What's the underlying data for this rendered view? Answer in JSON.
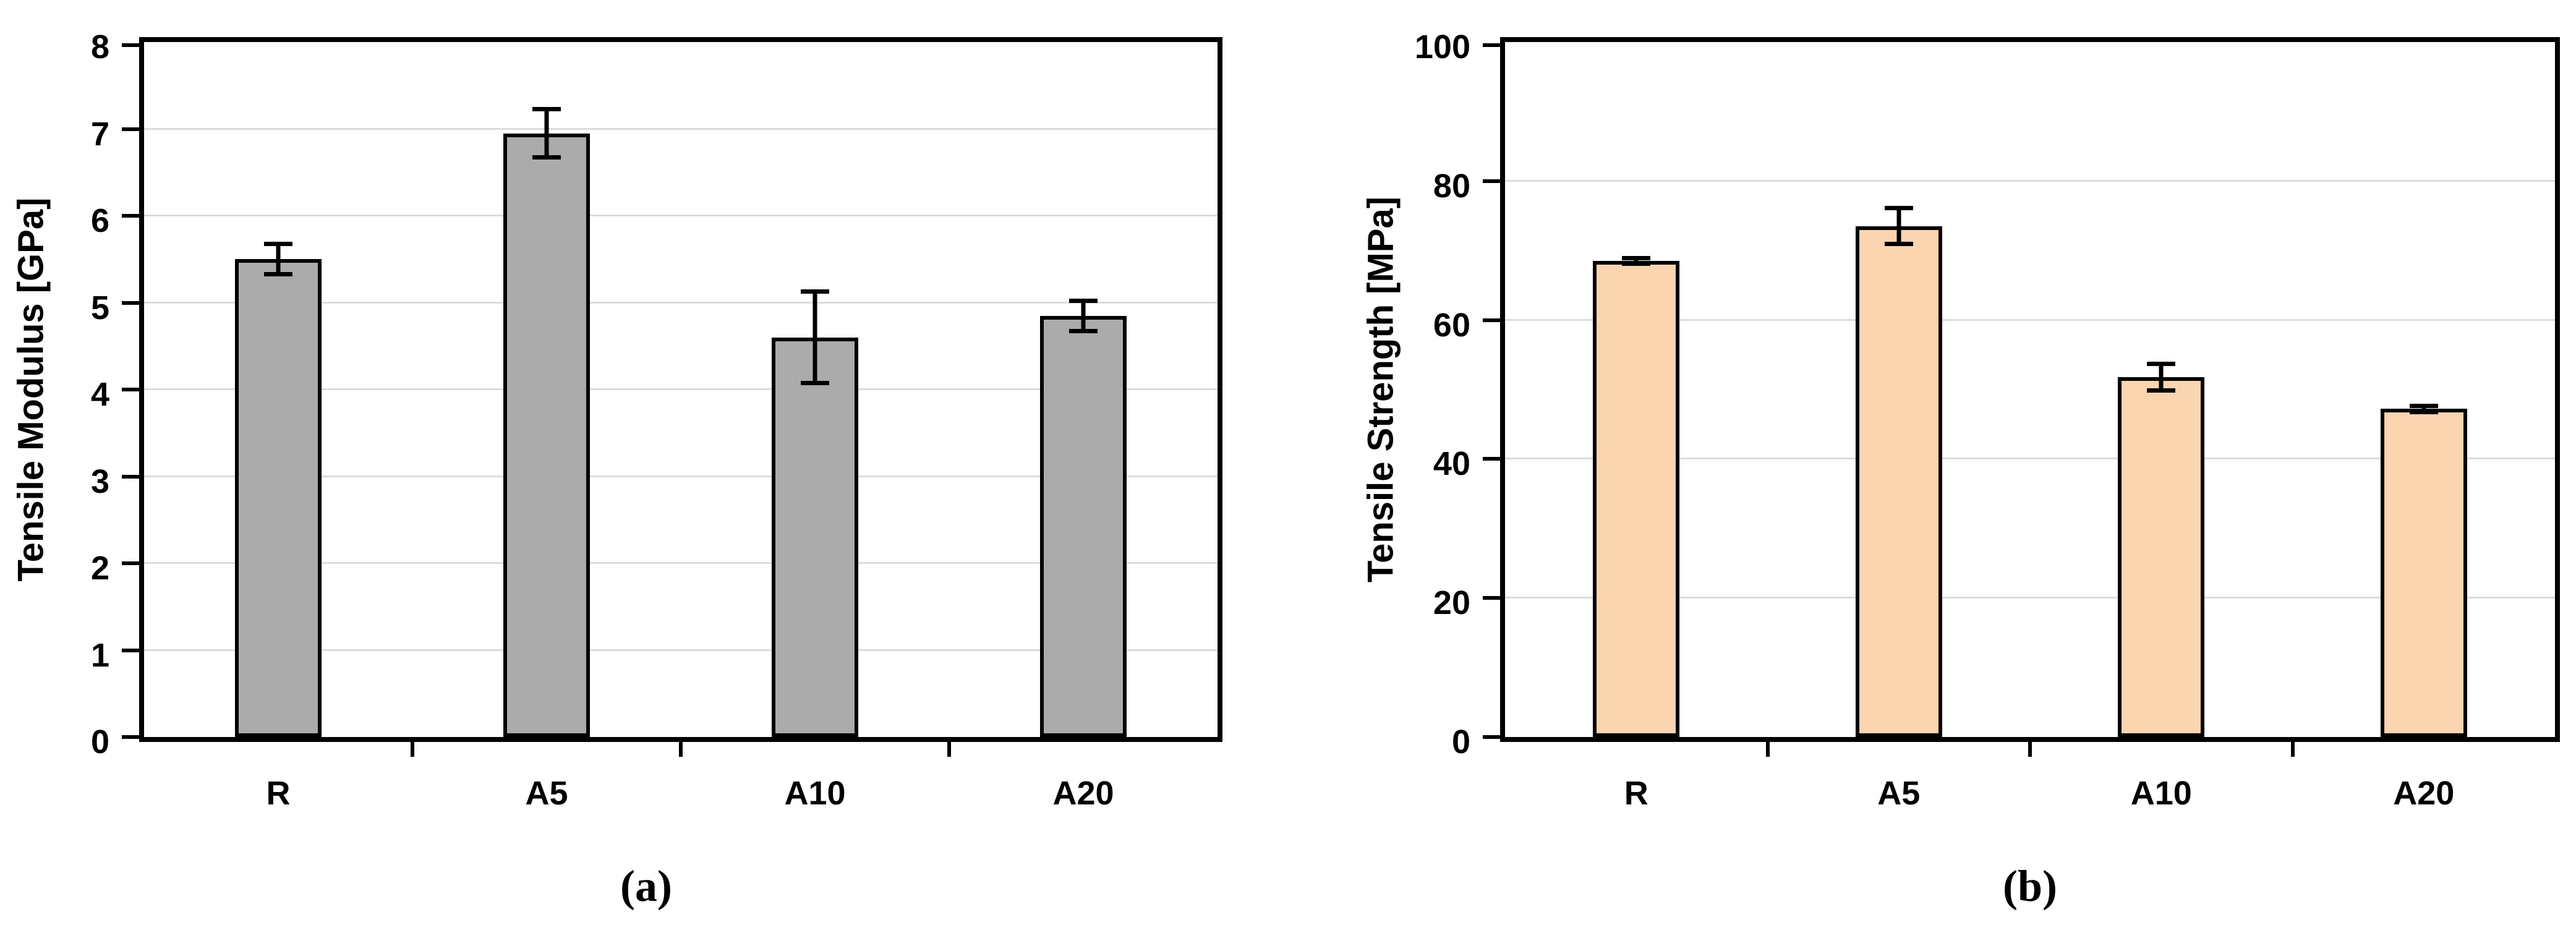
{
  "chart_data": [
    {
      "type": "bar",
      "panel": "a",
      "caption": "(a)",
      "title": "",
      "xlabel": "",
      "ylabel": "Tensile Modulus [GPa]",
      "categories": [
        "R",
        "A5",
        "A10",
        "A20"
      ],
      "values": [
        5.5,
        6.95,
        4.6,
        4.85
      ],
      "errors": [
        0.2,
        0.3,
        0.55,
        0.2
      ],
      "ylim": [
        0,
        8
      ],
      "yticks": [
        0,
        1,
        2,
        3,
        4,
        5,
        6,
        7,
        8
      ],
      "grid": true,
      "legend": null,
      "bar_fill": "#ABABAB",
      "bar_border": "#000000",
      "gridline_color": "#DCDCDC",
      "frame_color": "#000000"
    },
    {
      "type": "bar",
      "panel": "b",
      "caption": "(b)",
      "title": "",
      "xlabel": "",
      "ylabel": "Tensile Strength [MPa]",
      "categories": [
        "R",
        "A5",
        "A10",
        "A20"
      ],
      "values": [
        68.5,
        73.5,
        51.8,
        47.2
      ],
      "errors": [
        0.7,
        2.9,
        2.2,
        0.8
      ],
      "ylim": [
        0,
        100
      ],
      "yticks": [
        0,
        20,
        40,
        60,
        80,
        100
      ],
      "grid": true,
      "legend": null,
      "bar_fill": "#FBD4B0",
      "bar_border": "#000000",
      "gridline_color": "#DCDCDC",
      "frame_color": "#000000"
    }
  ]
}
